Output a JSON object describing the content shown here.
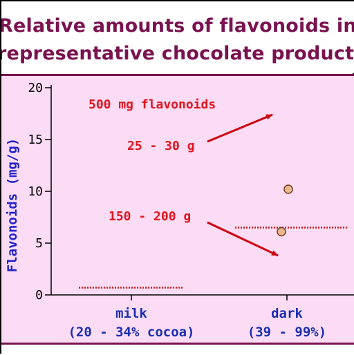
{
  "header": {
    "title_line_1": "Relative amounts of flavonoids in",
    "title_line_2": "representative chocolate products"
  },
  "chart_data": {
    "type": "scatter",
    "title": "Relative amounts of flavonoids in representative chocolate products",
    "ylabel": "Flavonoids (mg/g)",
    "xlabel": "",
    "ylim": [
      0,
      20
    ],
    "yticks": [
      0,
      5,
      10,
      15,
      20
    ],
    "categories": [
      {
        "name": "milk",
        "sub": "(20 - 34% cocoa)"
      },
      {
        "name": "dark",
        "sub": "(39 - 99%)"
      }
    ],
    "points": [
      {
        "category": "dark",
        "y": 10.2
      },
      {
        "category": "dark",
        "y": 6.1
      }
    ],
    "reference_lines": [
      {
        "category": "milk",
        "y": 0.7,
        "style": "dotted",
        "color": "#cc1111"
      },
      {
        "category": "dark",
        "y": 6.5,
        "style": "dotted",
        "color": "#cc1111"
      }
    ],
    "annotations": {
      "header": "500 mg flavonoids",
      "upper": "25 - 30 g",
      "lower": "150 - 200 g"
    },
    "colors": {
      "annotation": "#e0141e",
      "axis_label": "#2222cc",
      "category_label": "#1a2fb0",
      "point_fill": "#e8b890",
      "point_stroke": "#7a3a1a",
      "arrow": "#cc0010",
      "title": "#7a1250",
      "panel": "#fbdcf4"
    }
  }
}
